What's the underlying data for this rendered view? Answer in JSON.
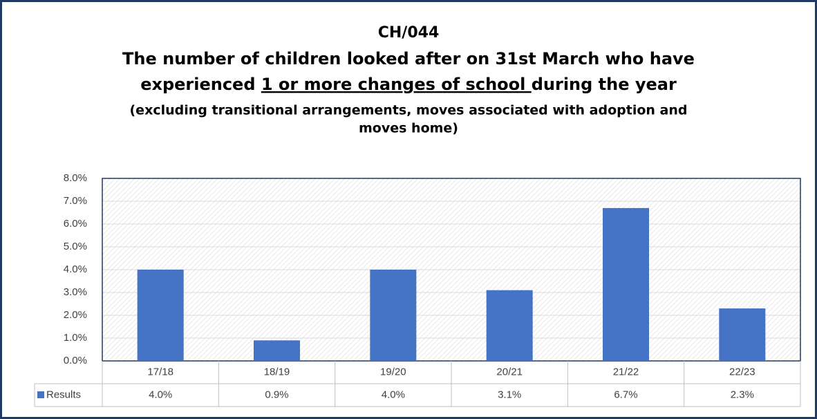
{
  "chart_data": {
    "type": "bar",
    "title": "CH/044",
    "heading": [
      "The number of children looked after on 31st March who have",
      "experienced ",
      "1 or more changes of school ",
      "during the year"
    ],
    "subtitle": [
      "(excluding transitional arrangements, moves associated with adoption and",
      "moves home)"
    ],
    "categories": [
      "17/18",
      "18/19",
      "19/20",
      "20/21",
      "21/22",
      "22/23"
    ],
    "series": [
      {
        "name": "Results",
        "color": "#4472c4",
        "values": [
          4.0,
          0.9,
          4.0,
          3.1,
          6.7,
          2.3
        ],
        "value_labels": [
          "4.0%",
          "0.9%",
          "4.0%",
          "3.1%",
          "6.7%",
          "2.3%"
        ]
      }
    ],
    "ylim": [
      0,
      8
    ],
    "yticks": [
      {
        "value": 0,
        "label": "0.0%"
      },
      {
        "value": 1,
        "label": "1.0%"
      },
      {
        "value": 2,
        "label": "2.0%"
      },
      {
        "value": 3,
        "label": "3.0%"
      },
      {
        "value": 4,
        "label": "4.0%"
      },
      {
        "value": 5,
        "label": "5.0%"
      },
      {
        "value": 6,
        "label": "6.0%"
      },
      {
        "value": 7,
        "label": "7.0%"
      },
      {
        "value": 8,
        "label": "8.0%"
      }
    ],
    "grid": true
  }
}
